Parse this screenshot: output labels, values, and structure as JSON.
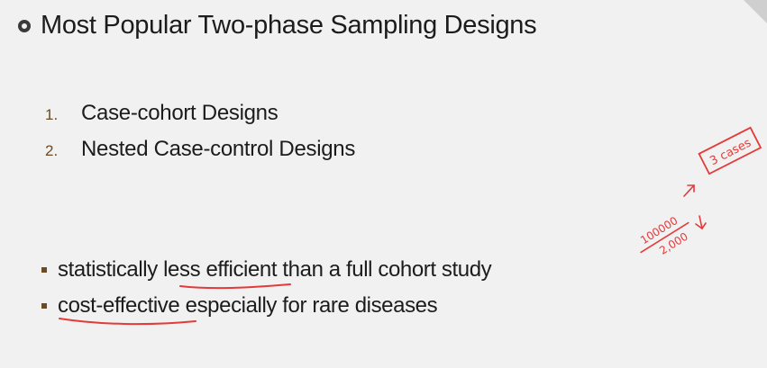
{
  "slide": {
    "title": "Most Popular Two-phase Sampling Designs",
    "designs": [
      {
        "number": "1.",
        "label": "Case-cohort Designs"
      },
      {
        "number": "2.",
        "label": "Nested Case-control Designs"
      }
    ],
    "points": [
      {
        "before": "statistically ",
        "highlight": "less efficient",
        "after": " than a full cohort study"
      },
      {
        "before": "",
        "highlight": "cost-effective",
        "after": " especially for rare diseases"
      }
    ]
  },
  "annotations": {
    "boxed_note": "3 cases",
    "population": "100000",
    "sample": "2,000"
  },
  "colors": {
    "ink": "#e33a3a",
    "bullet": "#6b4a24",
    "background": "#f1f1f1"
  }
}
